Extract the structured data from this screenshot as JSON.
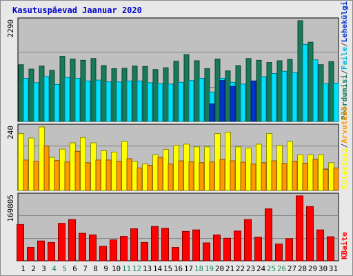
{
  "title": "Kasutuspäevad Jaanuar 2020",
  "colors": {
    "background": "#e8e8e8",
    "plot_bg": "#c0c0c0",
    "title": "#0000cc",
    "hits": "#197a59",
    "files": "#00e0ff",
    "pages": "#0033cc",
    "visits": "#ffff00",
    "sites": "#ff9900",
    "kbytes": "#ff0000",
    "weekend_tick": "#1a8a5a",
    "weekday_tick": "#000000"
  },
  "chart_data": [
    {
      "type": "bar",
      "panel": "top",
      "ymax_label": "2290",
      "ylim": [
        0,
        2290
      ],
      "grid": true,
      "right_labels": [
        {
          "text": "Pöördumisi",
          "color": "#197a59"
        },
        {
          "text": "/",
          "color": "#444444"
        },
        {
          "text": "Faile",
          "color": "#00b8d8"
        },
        {
          "text": "/",
          "color": "#444444"
        },
        {
          "text": "Lehekülgi",
          "color": "#0033cc"
        }
      ],
      "categories": [
        "1",
        "2",
        "3",
        "4",
        "5",
        "6",
        "7",
        "8",
        "9",
        "10",
        "11",
        "12",
        "13",
        "14",
        "15",
        "16",
        "17",
        "18",
        "19",
        "20",
        "21",
        "22",
        "23",
        "24",
        "25",
        "26",
        "27",
        "28",
        "29",
        "30",
        "31"
      ],
      "series": [
        {
          "name": "Pöördumisi",
          "values": [
            1290,
            1190,
            1260,
            1160,
            1480,
            1420,
            1390,
            1430,
            1270,
            1200,
            1210,
            1260,
            1250,
            1180,
            1220,
            1370,
            1520,
            1380,
            1200,
            1420,
            1150,
            1270,
            1430,
            1390,
            1340,
            1380,
            1410,
            2290,
            1800,
            1290,
            1360
          ]
        },
        {
          "name": "Faile",
          "values": [
            980,
            880,
            1020,
            840,
            1000,
            980,
            920,
            940,
            900,
            900,
            920,
            920,
            880,
            860,
            850,
            890,
            930,
            980,
            670,
            980,
            890,
            850,
            900,
            1020,
            1090,
            1140,
            1110,
            1750,
            1400,
            860,
            870
          ]
        },
        {
          "name": "Lehekülgi",
          "values": [
            0,
            0,
            0,
            0,
            0,
            0,
            0,
            0,
            0,
            0,
            0,
            0,
            0,
            0,
            0,
            0,
            0,
            0,
            400,
            930,
            800,
            0,
            920,
            0,
            0,
            0,
            0,
            0,
            0,
            0,
            0
          ]
        }
      ]
    },
    {
      "type": "bar",
      "panel": "middle",
      "ymax_label": "240",
      "ylim": [
        0,
        240
      ],
      "grid": true,
      "right_labels": [
        {
          "text": "Külastusi",
          "color": "#ffff00"
        },
        {
          "text": "/",
          "color": "#444444"
        },
        {
          "text": "Arvuteid",
          "color": "#ff9900"
        }
      ],
      "categories": [
        "1",
        "2",
        "3",
        "4",
        "5",
        "6",
        "7",
        "8",
        "9",
        "10",
        "11",
        "12",
        "13",
        "14",
        "15",
        "16",
        "17",
        "18",
        "19",
        "20",
        "21",
        "22",
        "23",
        "24",
        "25",
        "26",
        "27",
        "28",
        "29",
        "30",
        "31"
      ],
      "series": [
        {
          "name": "Külastusi",
          "values": [
            215,
            198,
            240,
            125,
            156,
            180,
            200,
            180,
            150,
            145,
            185,
            110,
            100,
            135,
            155,
            170,
            175,
            165,
            165,
            215,
            220,
            165,
            160,
            175,
            215,
            170,
            185,
            135,
            135,
            135,
            105
          ]
        },
        {
          "name": "Arvuteid",
          "values": [
            115,
            110,
            168,
            113,
            108,
            148,
            105,
            115,
            115,
            110,
            120,
            85,
            95,
            125,
            100,
            112,
            108,
            105,
            108,
            118,
            112,
            107,
            100,
            105,
            112,
            102,
            110,
            103,
            118,
            80,
            85
          ]
        }
      ]
    },
    {
      "type": "bar",
      "panel": "bottom",
      "ymax_label": "169805",
      "ylim": [
        0,
        169805
      ],
      "grid": true,
      "right_labels": [
        {
          "text": "KBaite",
          "color": "#ff0000"
        }
      ],
      "categories": [
        "1",
        "2",
        "3",
        "4",
        "5",
        "6",
        "7",
        "8",
        "9",
        "10",
        "11",
        "12",
        "13",
        "14",
        "15",
        "16",
        "17",
        "18",
        "19",
        "20",
        "21",
        "22",
        "23",
        "24",
        "25",
        "26",
        "27",
        "28",
        "29",
        "30",
        "31"
      ],
      "series": [
        {
          "name": "KBaite",
          "values": [
            95000,
            35000,
            52000,
            48000,
            98000,
            108000,
            72000,
            68000,
            38000,
            55000,
            64000,
            84000,
            48000,
            90000,
            85000,
            35000,
            77000,
            81000,
            47000,
            68000,
            59000,
            78000,
            108000,
            62000,
            136000,
            44000,
            58000,
            170000,
            142000,
            81000,
            63000
          ]
        }
      ]
    }
  ],
  "x_axis": {
    "labels": [
      "1",
      "2",
      "3",
      "4",
      "5",
      "6",
      "7",
      "8",
      "9",
      "10",
      "11",
      "12",
      "13",
      "14",
      "15",
      "16",
      "17",
      "18",
      "19",
      "20",
      "21",
      "22",
      "23",
      "24",
      "25",
      "26",
      "27",
      "28",
      "29",
      "30",
      "31"
    ],
    "weekend": [
      false,
      false,
      false,
      true,
      true,
      false,
      false,
      false,
      false,
      false,
      true,
      true,
      false,
      false,
      false,
      false,
      false,
      true,
      true,
      false,
      false,
      false,
      false,
      false,
      true,
      true,
      false,
      false,
      false,
      false,
      false
    ]
  }
}
